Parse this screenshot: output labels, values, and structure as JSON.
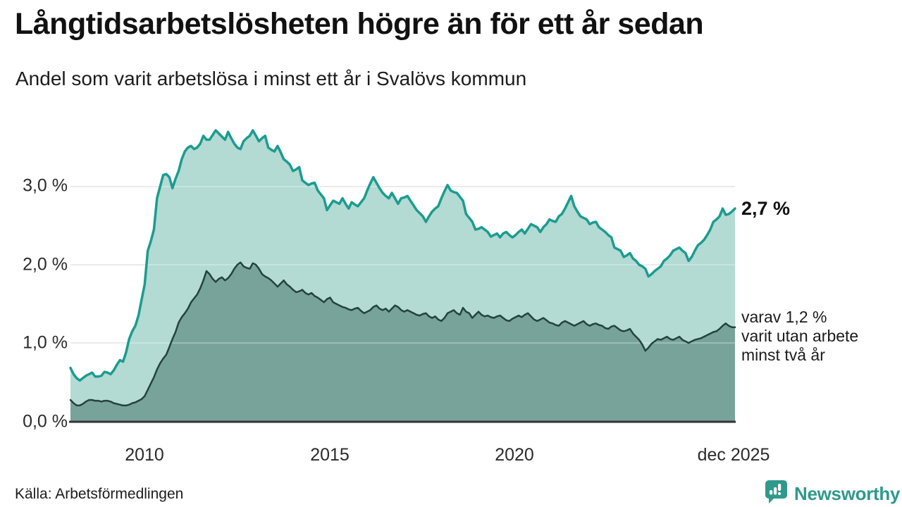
{
  "header": {
    "title": "Långtidsarbetslösheten högre än för ett år sedan",
    "subtitle": "Andel som varit arbetslösa i minst ett år i Svalövs kommun"
  },
  "chart_data": {
    "type": "area",
    "title": "Långtidsarbetslösheten högre än för ett år sedan",
    "subtitle": "Andel som varit arbetslösa i minst ett år i Svalövs kommun",
    "unit": "%",
    "x_start": "2008-01",
    "x_end": "2025-12",
    "x_frequency": "monthly",
    "ylim": [
      0,
      3.9
    ],
    "grid": "horizontal",
    "y_ticks": [
      {
        "value": 3,
        "label": "3,0 %"
      },
      {
        "value": 2,
        "label": "2,0 %"
      },
      {
        "value": 1,
        "label": "1,0 %"
      },
      {
        "value": 0,
        "label": "0,0 %"
      }
    ],
    "x_ticks": [
      {
        "label": "2010",
        "month_index": 24
      },
      {
        "label": "2015",
        "month_index": 84
      },
      {
        "label": "2020",
        "month_index": 144
      },
      {
        "label": "dec 2025",
        "month_index": 215
      }
    ],
    "series": [
      {
        "name": "Andel som varit arbetslösa i minst ett år",
        "line_color": "#1b9c8e",
        "fill_color": "#b3dad3",
        "line_width": 3.5,
        "last_value": 2.7,
        "values": [
          0.68,
          0.6,
          0.55,
          0.52,
          0.55,
          0.58,
          0.6,
          0.62,
          0.57,
          0.57,
          0.58,
          0.63,
          0.62,
          0.6,
          0.65,
          0.72,
          0.78,
          0.76,
          0.88,
          1.05,
          1.15,
          1.22,
          1.35,
          1.55,
          1.75,
          2.18,
          2.3,
          2.45,
          2.85,
          3.0,
          3.15,
          3.16,
          3.12,
          2.98,
          3.1,
          3.2,
          3.35,
          3.45,
          3.5,
          3.52,
          3.48,
          3.5,
          3.55,
          3.65,
          3.6,
          3.6,
          3.66,
          3.72,
          3.68,
          3.64,
          3.6,
          3.7,
          3.62,
          3.55,
          3.5,
          3.48,
          3.58,
          3.62,
          3.65,
          3.72,
          3.65,
          3.58,
          3.62,
          3.65,
          3.5,
          3.47,
          3.45,
          3.52,
          3.44,
          3.35,
          3.32,
          3.28,
          3.2,
          3.22,
          3.25,
          3.08,
          3.05,
          3.02,
          3.04,
          3.05,
          2.95,
          2.9,
          2.85,
          2.7,
          2.76,
          2.82,
          2.8,
          2.78,
          2.85,
          2.78,
          2.72,
          2.8,
          2.77,
          2.75,
          2.8,
          2.85,
          2.95,
          3.04,
          3.12,
          3.05,
          2.98,
          2.92,
          2.88,
          2.85,
          2.92,
          2.85,
          2.78,
          2.85,
          2.86,
          2.88,
          2.82,
          2.76,
          2.7,
          2.66,
          2.62,
          2.55,
          2.62,
          2.68,
          2.72,
          2.75,
          2.85,
          2.94,
          3.02,
          2.95,
          2.93,
          2.92,
          2.87,
          2.82,
          2.65,
          2.6,
          2.55,
          2.45,
          2.46,
          2.48,
          2.45,
          2.42,
          2.36,
          2.38,
          2.4,
          2.35,
          2.4,
          2.42,
          2.38,
          2.35,
          2.38,
          2.42,
          2.45,
          2.4,
          2.46,
          2.52,
          2.5,
          2.48,
          2.42,
          2.48,
          2.52,
          2.58,
          2.56,
          2.55,
          2.62,
          2.65,
          2.72,
          2.8,
          2.88,
          2.75,
          2.68,
          2.62,
          2.6,
          2.58,
          2.52,
          2.54,
          2.55,
          2.48,
          2.45,
          2.42,
          2.38,
          2.35,
          2.22,
          2.2,
          2.18,
          2.1,
          2.12,
          2.15,
          2.08,
          2.05,
          2.0,
          1.98,
          1.95,
          1.85,
          1.88,
          1.92,
          1.95,
          1.98,
          2.05,
          2.08,
          2.12,
          2.18,
          2.2,
          2.22,
          2.18,
          2.15,
          2.05,
          2.1,
          2.18,
          2.25,
          2.28,
          2.32,
          2.38,
          2.45,
          2.55,
          2.58,
          2.62,
          2.72,
          2.64,
          2.65,
          2.68,
          2.72
        ]
      },
      {
        "name": "varav utan arbete minst två år",
        "line_color": "#24423e",
        "fill_color": "#77a39b",
        "line_width": 2.5,
        "last_value": 1.2,
        "values": [
          0.27,
          0.23,
          0.2,
          0.2,
          0.22,
          0.25,
          0.27,
          0.27,
          0.26,
          0.26,
          0.25,
          0.26,
          0.26,
          0.25,
          0.23,
          0.22,
          0.21,
          0.2,
          0.2,
          0.21,
          0.23,
          0.24,
          0.26,
          0.28,
          0.32,
          0.4,
          0.48,
          0.56,
          0.66,
          0.74,
          0.8,
          0.85,
          0.95,
          1.05,
          1.14,
          1.26,
          1.33,
          1.38,
          1.44,
          1.52,
          1.57,
          1.62,
          1.7,
          1.8,
          1.92,
          1.88,
          1.82,
          1.78,
          1.82,
          1.84,
          1.8,
          1.83,
          1.88,
          1.95,
          2.0,
          2.03,
          1.98,
          1.96,
          1.95,
          2.02,
          2.0,
          1.95,
          1.88,
          1.85,
          1.83,
          1.8,
          1.76,
          1.72,
          1.76,
          1.8,
          1.75,
          1.72,
          1.68,
          1.65,
          1.66,
          1.68,
          1.64,
          1.62,
          1.64,
          1.6,
          1.58,
          1.55,
          1.52,
          1.56,
          1.58,
          1.52,
          1.5,
          1.48,
          1.46,
          1.45,
          1.43,
          1.42,
          1.44,
          1.45,
          1.41,
          1.38,
          1.4,
          1.42,
          1.46,
          1.48,
          1.44,
          1.42,
          1.44,
          1.4,
          1.44,
          1.48,
          1.46,
          1.42,
          1.4,
          1.42,
          1.4,
          1.38,
          1.36,
          1.35,
          1.37,
          1.38,
          1.34,
          1.32,
          1.34,
          1.3,
          1.28,
          1.32,
          1.38,
          1.4,
          1.42,
          1.38,
          1.36,
          1.45,
          1.4,
          1.38,
          1.32,
          1.36,
          1.4,
          1.36,
          1.34,
          1.35,
          1.33,
          1.32,
          1.34,
          1.35,
          1.32,
          1.29,
          1.28,
          1.31,
          1.33,
          1.35,
          1.33,
          1.36,
          1.38,
          1.34,
          1.3,
          1.28,
          1.3,
          1.32,
          1.29,
          1.26,
          1.25,
          1.23,
          1.22,
          1.26,
          1.28,
          1.26,
          1.24,
          1.22,
          1.24,
          1.26,
          1.28,
          1.24,
          1.22,
          1.24,
          1.25,
          1.23,
          1.22,
          1.19,
          1.18,
          1.21,
          1.22,
          1.19,
          1.16,
          1.15,
          1.16,
          1.18,
          1.12,
          1.08,
          1.04,
          0.98,
          0.9,
          0.94,
          0.99,
          1.02,
          1.05,
          1.04,
          1.06,
          1.08,
          1.05,
          1.04,
          1.06,
          1.08,
          1.04,
          1.02,
          1.0,
          1.02,
          1.04,
          1.05,
          1.06,
          1.08,
          1.1,
          1.12,
          1.14,
          1.15,
          1.18,
          1.22,
          1.25,
          1.22,
          1.2,
          1.2
        ]
      }
    ],
    "annotations": {
      "last_value_label": "2,7 %",
      "secondary_label_lines": [
        "varav 1,2 %",
        "varit utan arbete",
        "minst två år"
      ]
    },
    "colors": {
      "gridline": "#d9d9d9",
      "baseline": "#333333",
      "text": "#2b2b2b"
    }
  },
  "footer": {
    "source": "Källa: Arbetsförmedlingen",
    "brand": "Newsworthy",
    "brand_color": "#2f998b"
  }
}
